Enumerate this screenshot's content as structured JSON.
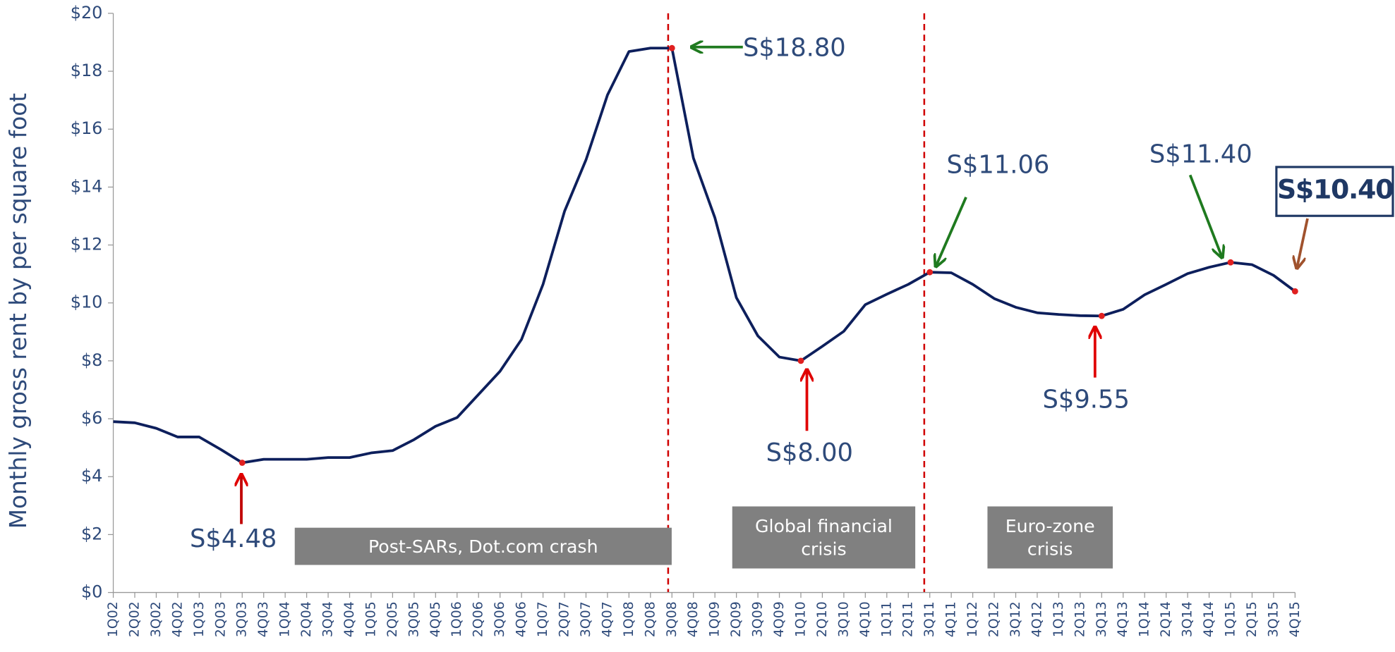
{
  "chart_data": {
    "type": "line",
    "y_label": "Monthly gross rent by per square foot",
    "categories": [
      "1Q02",
      "2Q02",
      "3Q02",
      "4Q02",
      "1Q03",
      "2Q03",
      "3Q03",
      "4Q03",
      "1Q04",
      "2Q04",
      "3Q04",
      "4Q04",
      "1Q05",
      "2Q05",
      "3Q05",
      "4Q05",
      "1Q06",
      "2Q06",
      "3Q06",
      "4Q06",
      "1Q07",
      "2Q07",
      "3Q07",
      "4Q07",
      "1Q08",
      "2Q08",
      "3Q08",
      "4Q08",
      "1Q09",
      "2Q09",
      "3Q09",
      "4Q09",
      "1Q10",
      "2Q10",
      "3Q10",
      "4Q10",
      "1Q11",
      "2Q11",
      "3Q11",
      "4Q11",
      "1Q12",
      "2Q12",
      "3Q12",
      "4Q12",
      "1Q13",
      "2Q13",
      "3Q13",
      "4Q13",
      "1Q14",
      "2Q14",
      "3Q14",
      "4Q14",
      "1Q15",
      "2Q15",
      "3Q15",
      "4Q15"
    ],
    "series": [
      {
        "color": "#0d1f5c",
        "values": [
          5.9,
          5.86,
          5.67,
          5.37,
          5.37,
          4.94,
          4.48,
          4.6,
          4.6,
          4.6,
          4.66,
          4.66,
          4.82,
          4.9,
          5.28,
          5.74,
          6.04,
          6.84,
          7.64,
          8.74,
          10.64,
          13.16,
          14.94,
          17.18,
          18.68,
          18.8,
          18.8,
          15.0,
          12.94,
          10.18,
          8.86,
          8.13,
          8.0,
          8.5,
          9.02,
          9.94,
          10.3,
          10.64,
          11.06,
          11.04,
          10.64,
          10.15,
          9.85,
          9.66,
          9.6,
          9.56,
          9.55,
          9.78,
          10.28,
          10.64,
          11.01,
          11.23,
          11.4,
          11.32,
          10.95,
          10.4
        ]
      }
    ],
    "ylim": [
      0,
      20
    ],
    "yticks": [
      {
        "value": 0,
        "label": "$0"
      },
      {
        "value": 2,
        "label": "$2"
      },
      {
        "value": 4,
        "label": "$4"
      },
      {
        "value": 6,
        "label": "$6"
      },
      {
        "value": 8,
        "label": "$8"
      },
      {
        "value": 10,
        "label": "$10"
      },
      {
        "value": 12,
        "label": "$12"
      },
      {
        "value": 14,
        "label": "$14"
      },
      {
        "value": 16,
        "label": "$16"
      },
      {
        "value": 18,
        "label": "$18"
      },
      {
        "value": 20,
        "label": "$20"
      }
    ],
    "annotations": [
      "S$4.48",
      "S$18.80",
      "S$8.00",
      "S$11.06",
      "S$9.55",
      "S$11.40",
      "S$10.40"
    ],
    "regions": [
      "Post-SARs, Dot.com crash",
      "Global financial crisis",
      "Euro-zone crisis"
    ]
  }
}
